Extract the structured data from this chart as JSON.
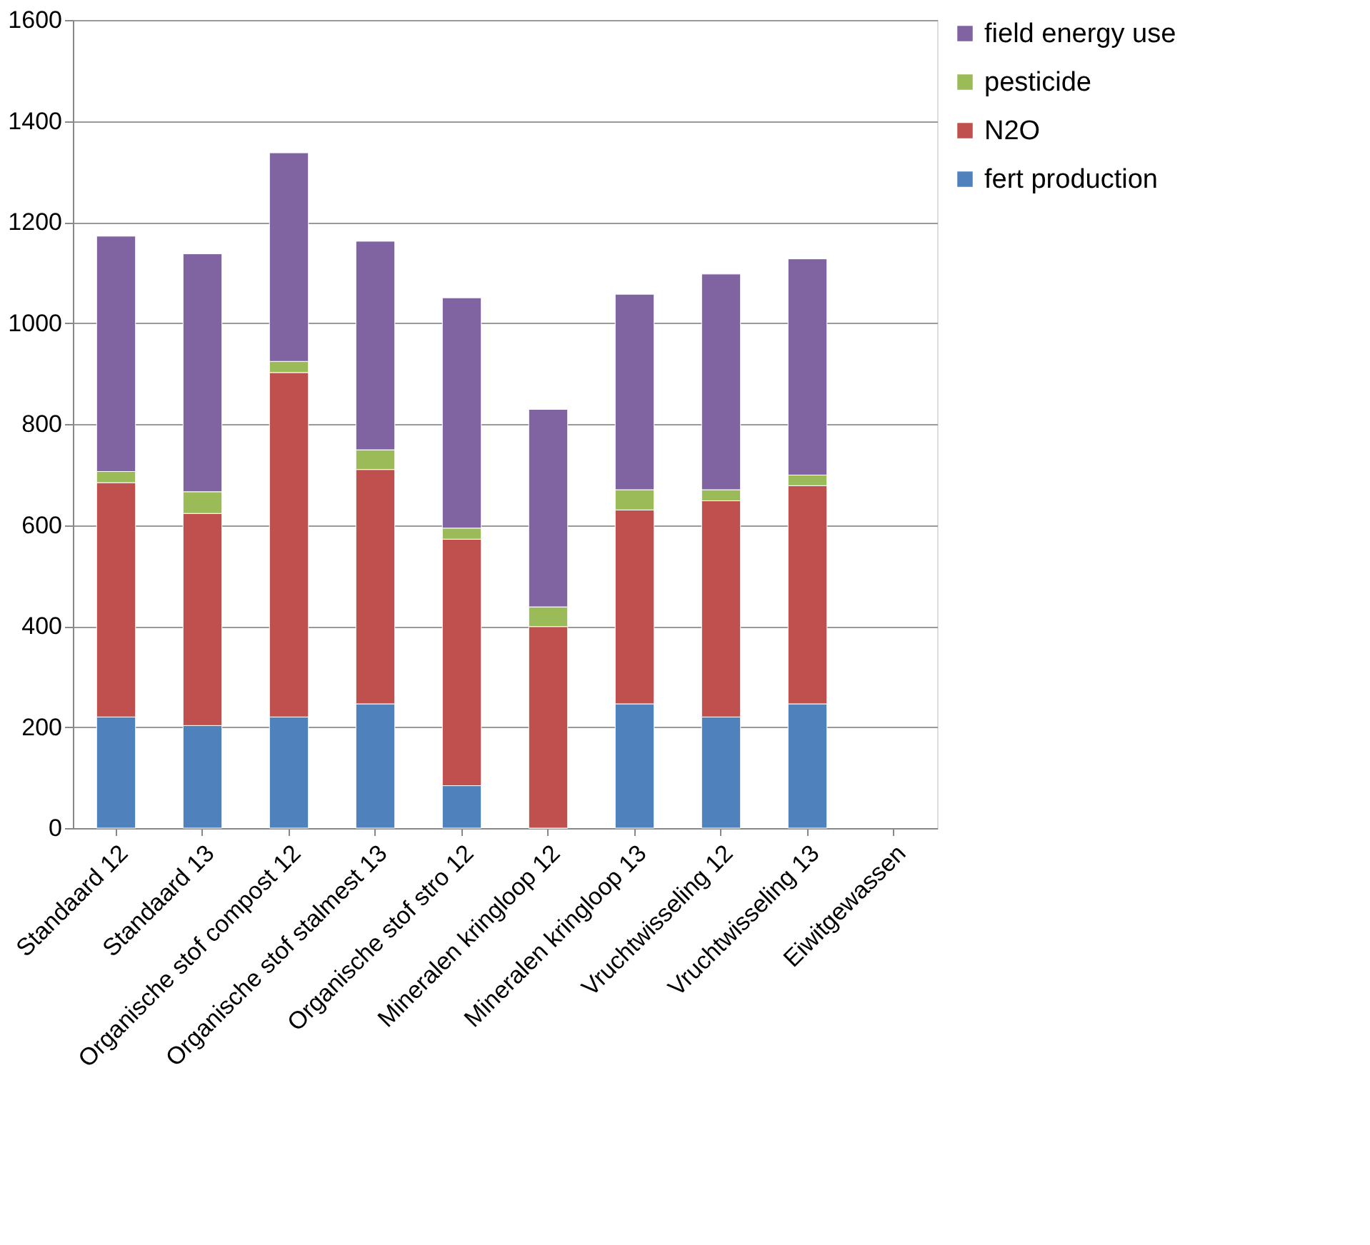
{
  "chart_data": {
    "type": "bar",
    "stacked": true,
    "categories": [
      "Standaard 12",
      "Standaard 13",
      "Organische stof compost 12",
      "Organische stof stalmest 13",
      "Organische stof stro 12",
      "Mineralen kringloop 12",
      "Mineralen kringloop 13",
      "Vruchtwisseling 12",
      "Vruchtwisseling 13",
      "Eiwitgewassen"
    ],
    "series": [
      {
        "name": "fert production",
        "color": "#4f81bd",
        "values": [
          220,
          203,
          220,
          246,
          84,
          0,
          246,
          220,
          246,
          null
        ]
      },
      {
        "name": "N2O",
        "color": "#c0504d",
        "values": [
          464,
          420,
          682,
          464,
          488,
          399,
          384,
          428,
          432,
          null
        ]
      },
      {
        "name": "pesticide",
        "color": "#9bbb59",
        "values": [
          22,
          43,
          22,
          39,
          22,
          39,
          40,
          22,
          21,
          null
        ]
      },
      {
        "name": "field energy use",
        "color": "#8064a2",
        "values": [
          466,
          471,
          413,
          413,
          456,
          391,
          387,
          427,
          428,
          null
        ]
      }
    ],
    "ylim": [
      0,
      1600
    ],
    "yticks": [
      0,
      200,
      400,
      600,
      800,
      1000,
      1200,
      1400,
      1600
    ],
    "grid": "y",
    "legend": "right"
  }
}
